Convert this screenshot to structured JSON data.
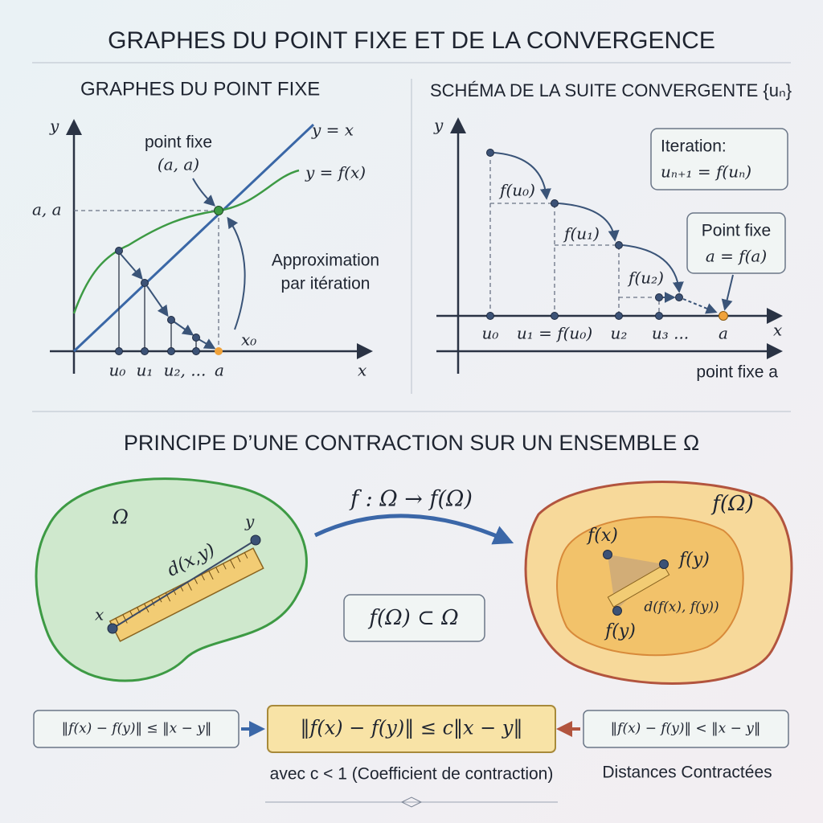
{
  "title": "GRAPHES DU POINT FIXE ET DE LA CONVERGENCE",
  "left_panel": {
    "title": "GRAPHES DU POINT FIXE",
    "y_axis": "y",
    "x_axis": "x",
    "aa": "a, a",
    "point_fixe": "point fixe",
    "point_coords": "(a, a)",
    "line_label": "y = x",
    "curve_label": "y = f(x)",
    "approx_1": "Approximation",
    "approx_2": "par itération",
    "x0": "x₀",
    "ticks": [
      "u₀",
      "u₁",
      "u₂, ...",
      "a"
    ]
  },
  "right_panel": {
    "title": "SCHÉMA DE LA SUITE CONVERGENTE {uₙ}",
    "y_axis": "y",
    "x_axis": "x",
    "iteration_title": "Iteration:",
    "iteration_formula": "uₙ₊₁ = f(uₙ)",
    "steps": [
      "f(u₀)",
      "f(u₁)",
      "f(u₂)"
    ],
    "fixed_title": "Point fixe",
    "fixed_formula": "a = f(a)",
    "ticks": [
      "u₀",
      "u₁ = f(u₀)",
      "u₂",
      "u₃ ...",
      "a"
    ],
    "bottom_label": "point fixe a"
  },
  "contraction": {
    "title": "PRINCIPE D’UNE CONTRACTION SUR UN ENSEMBLE Ω",
    "omega": "Ω",
    "x": "x",
    "y": "y",
    "distance": "d(x,y)",
    "map": "f : Ω → f(Ω)",
    "inclusion": "f(Ω) ⊂ Ω",
    "image": "f(Ω)",
    "fx": "f(x)",
    "fy": "f(y)",
    "image_distance": "d(f(x), f(y))",
    "fy2": "f(y)",
    "left_formula": "‖f(x) − f(y)‖ ≤ ‖x − y‖",
    "main_formula": "‖f(x) − f(y)‖ ≤ c‖x − y‖",
    "right_formula": "‖f(x) − f(y)‖ < ‖x − y‖",
    "caption": "avec c < 1 (Coefficient de contraction)",
    "right_caption": "Distances Contractées"
  }
}
